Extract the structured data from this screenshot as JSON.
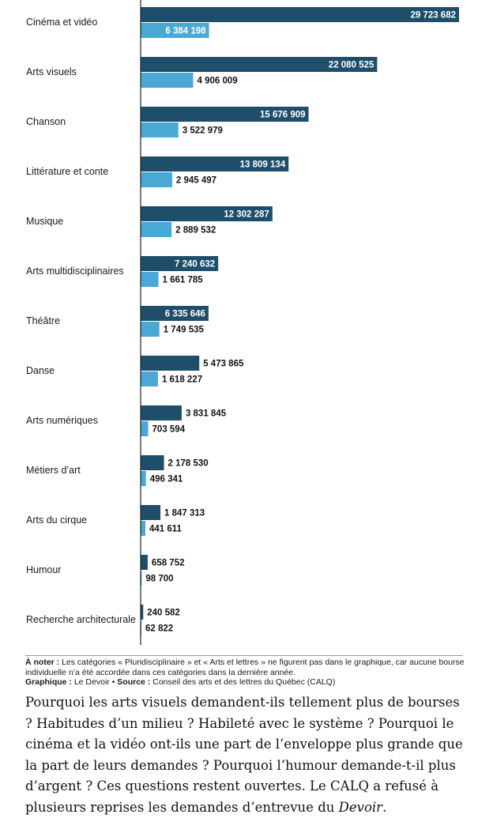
{
  "chart_data": {
    "type": "bar",
    "orientation": "horizontal",
    "categories": [
      "Cinéma et vidéo",
      "Arts visuels",
      "Chanson",
      "Littérature et conte",
      "Musique",
      "Arts multidisciplinaires",
      "Théâtre",
      "Danse",
      "Arts numériques",
      "Métiers d’art",
      "Arts du cirque",
      "Humour",
      "Recherche architecturale"
    ],
    "series": [
      {
        "color": "#1f4e6b",
        "values": [
          29723682,
          22080525,
          15676909,
          13809134,
          12302287,
          7240632,
          6335646,
          5473865,
          3831845,
          2178530,
          1847313,
          658752,
          240582
        ],
        "labels": [
          "29 723 682",
          "22 080 525",
          "15 676 909",
          "13 809 134",
          "12 302 287",
          "7 240 632",
          "6 335 646",
          "5 473 865",
          "3 831 845",
          "2 178 530",
          "1 847 313",
          "658 752",
          "240 582"
        ]
      },
      {
        "color": "#4aa8d4",
        "values": [
          6384198,
          4906009,
          3522979,
          2945497,
          2889532,
          1661785,
          1749535,
          1618227,
          703594,
          496341,
          441611,
          98700,
          62822
        ],
        "labels": [
          "6 384 198",
          "4 906 009",
          "3 522 979",
          "2 945 497",
          "2 889 532",
          "1 661 785",
          "1 749 535",
          "1 618 227",
          "703 594",
          "496 341",
          "441 611",
          "98 700",
          "62 822"
        ]
      }
    ],
    "xlim": [
      0,
      29723682
    ],
    "grid": false
  },
  "note": {
    "prefix": "À noter :",
    "text": " Les catégories « Pluridisciplinaire » et « Arts et lettres » ne figurent pas dans le graphique, car aucune bourse individuelle n’a été accordée dans ces catégories dans la dernière année.",
    "graphic_label": "Graphique :",
    "graphic_value": " Le Devoir • ",
    "source_label": "Source :",
    "source_value": " Conseil des arts et des lettres du Québec (CALQ)"
  },
  "article": {
    "text": "Pourquoi les arts visuels demandent-ils tellement plus de bourses ? Habitudes d’un milieu ? Habileté avec le système ? Pourquoi le cinéma et la vidéo ont-ils une part de l’enveloppe plus grande que la part de leurs demandes ? Pourquoi l’humour demande-t-il plus d’argent ? Ces questions restent ouvertes. Le CALQ a refusé à plusieurs reprises les demandes d’entrevue du ",
    "emphasis": "Devoir",
    "end": "."
  }
}
